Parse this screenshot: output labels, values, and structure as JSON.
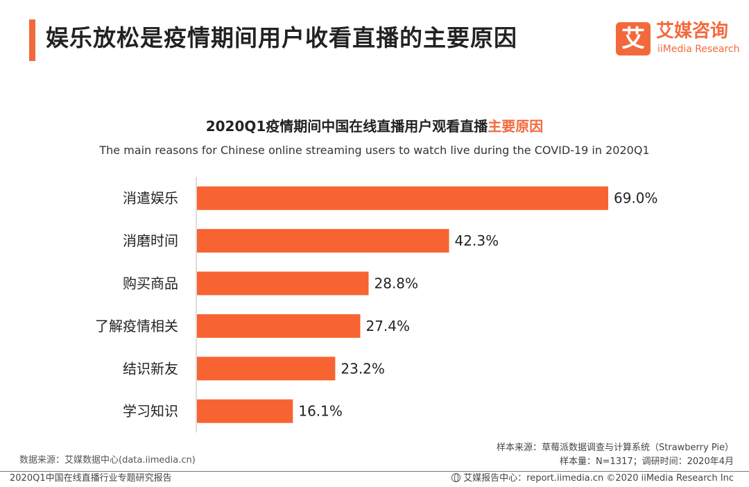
{
  "header": {
    "title": "娱乐放松是疫情期间用户收看直播的主要原因",
    "accent_color": "#f26a3c"
  },
  "logo": {
    "mark": "艾",
    "name_cn": "艾媒咨询",
    "name_en": "iiMedia Research"
  },
  "chart_data": {
    "type": "bar",
    "orientation": "horizontal",
    "title_main": "2020Q1疫情期间中国在线直播用户观看直播",
    "title_highlight": "主要原因",
    "subtitle": "The main reasons for Chinese online streaming users to watch live during the COVID-19 in 2020Q1",
    "categories": [
      "消遣娱乐",
      "消磨时间",
      "购买商品",
      "了解疫情相关",
      "结识新友",
      "学习知识"
    ],
    "values": [
      69.0,
      42.3,
      28.8,
      27.4,
      23.2,
      16.1
    ],
    "value_labels": [
      "69.0%",
      "42.3%",
      "28.8%",
      "27.4%",
      "23.2%",
      "16.1%"
    ],
    "xlim": [
      0,
      100
    ],
    "bar_color": "#f76432",
    "axis_color": "#bbbbbb"
  },
  "footer": {
    "source_left": "数据来源：艾媒数据中心(data.iimedia.cn)",
    "report_name": "2020Q1中国在线直播行业专题研究报告",
    "sample_source": "样本来源：草莓派数据调查与计算系统（Strawberry Pie）",
    "sample_size": "样本量：N=1317；调研时间：2020年4月",
    "report_center": "艾媒报告中心：report.iimedia.cn",
    "copyright": "©2020  iiMedia Research  Inc"
  }
}
